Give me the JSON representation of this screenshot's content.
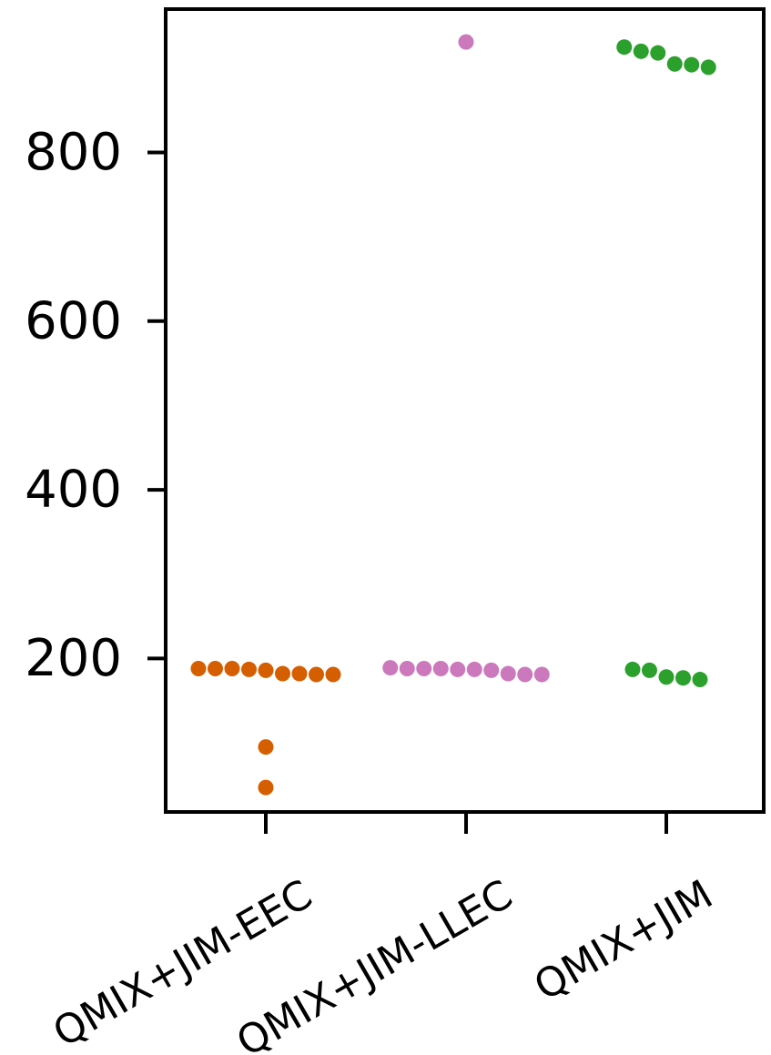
{
  "chart_data": {
    "type": "scatter",
    "subtype": "swarm",
    "title": "",
    "xlabel": "",
    "ylabel": "",
    "ylim": [
      18,
      970
    ],
    "yticks": [
      200,
      400,
      600,
      800
    ],
    "ytick_labels": [
      "200",
      "400",
      "600",
      "800"
    ],
    "categories": [
      "QMIX+JIM-EEC",
      "QMIX+JIM-LLEC",
      "QMIX+JIM"
    ],
    "grid": false,
    "legend": "none",
    "series": [
      {
        "category": "QMIX+JIM-EEC",
        "color": "#d55e00",
        "values": [
          188,
          188,
          186,
          182,
          181,
          181,
          182,
          187,
          188,
          95,
          47
        ]
      },
      {
        "category": "QMIX+JIM-LLEC",
        "color": "#cc78bc",
        "values": [
          188,
          188,
          187,
          182,
          181,
          181,
          186,
          187,
          188,
          189,
          931
        ]
      },
      {
        "category": "QMIX+JIM",
        "color": "#2ca02c",
        "values": [
          186,
          177,
          175,
          178,
          187,
          918,
          904,
          901,
          920,
          905,
          925
        ]
      }
    ]
  }
}
